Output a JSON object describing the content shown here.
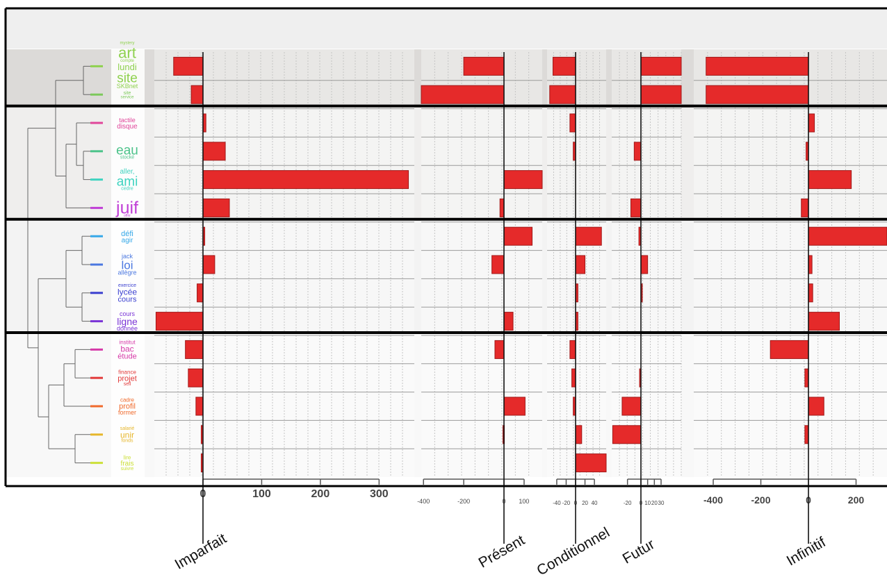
{
  "chart_data": {
    "type": "bar",
    "orientation": "horizontal",
    "groups": [
      {
        "rows": 2,
        "shade": "#dcdad8"
      },
      {
        "rows": 4,
        "shade": "#efeeed"
      },
      {
        "rows": 4,
        "shade": "#f3f3f3"
      },
      {
        "rows": 5,
        "shade": "#f8f8f8"
      }
    ],
    "clusters": [
      {
        "color": "#8fd14f",
        "words": [
          {
            "t": "mystery",
            "s": 6
          },
          {
            "t": "art",
            "s": 22
          },
          {
            "t": "compte",
            "s": 6
          },
          {
            "t": "lundi",
            "s": 13
          },
          {
            "t": "site",
            "s": 19
          },
          {
            "t": "SKBnet",
            "s": 9
          }
        ]
      },
      {
        "color": "#7cc95a",
        "words": [
          {
            "t": "site",
            "s": 7
          },
          {
            "t": "service",
            "s": 6
          }
        ]
      },
      {
        "color": "#e0459a",
        "words": [
          {
            "t": "tactile",
            "s": 9
          },
          {
            "t": "disque",
            "s": 10
          }
        ]
      },
      {
        "color": "#4cc38a",
        "words": [
          {
            "t": "eau",
            "s": 19
          },
          {
            "t": "stocké",
            "s": 7
          }
        ]
      },
      {
        "color": "#3fd3c0",
        "words": [
          {
            "t": "aller,",
            "s": 10
          },
          {
            "t": "ami",
            "s": 19
          },
          {
            "t": "cedre",
            "s": 7
          }
        ]
      },
      {
        "color": "#c03fd6",
        "words": [
          {
            "t": "juif",
            "s": 25
          },
          {
            "t": "offrir",
            "s": 5
          }
        ]
      },
      {
        "color": "#35a8e8",
        "words": [
          {
            "t": "défi",
            "s": 11
          },
          {
            "t": "agir",
            "s": 10
          }
        ]
      },
      {
        "color": "#4a77e0",
        "words": [
          {
            "t": "jack",
            "s": 9
          },
          {
            "t": "loi",
            "s": 17
          },
          {
            "t": "allègre",
            "s": 9
          }
        ]
      },
      {
        "color": "#3a3fd0",
        "words": [
          {
            "t": "exercice",
            "s": 7
          },
          {
            "t": "lycée",
            "s": 12
          },
          {
            "t": "cours",
            "s": 11
          }
        ]
      },
      {
        "color": "#7a34d6",
        "words": [
          {
            "t": "cours",
            "s": 9
          },
          {
            "t": "ligne",
            "s": 14
          },
          {
            "t": "donnée",
            "s": 9
          }
        ]
      },
      {
        "color": "#d63aa8",
        "words": [
          {
            "t": "institut",
            "s": 8
          },
          {
            "t": "bac",
            "s": 12
          },
          {
            "t": "étude",
            "s": 11
          }
        ]
      },
      {
        "color": "#e23b3b",
        "words": [
          {
            "t": "finance",
            "s": 8
          },
          {
            "t": "projet",
            "s": 11
          },
          {
            "t": "seil",
            "s": 7
          }
        ]
      },
      {
        "color": "#f06a2c",
        "words": [
          {
            "t": "cadre",
            "s": 8
          },
          {
            "t": "profil",
            "s": 11
          },
          {
            "t": "former",
            "s": 9
          }
        ]
      },
      {
        "color": "#e6b62a",
        "words": [
          {
            "t": "salarié",
            "s": 7
          },
          {
            "t": "unir",
            "s": 12
          },
          {
            "t": "fonds",
            "s": 7
          }
        ]
      },
      {
        "color": "#cce03a",
        "words": [
          {
            "t": "lire",
            "s": 8
          },
          {
            "t": "frais",
            "s": 10
          },
          {
            "t": "suivre",
            "s": 7
          }
        ]
      }
    ],
    "panels": [
      {
        "name": "Imparfait",
        "xlim": [
          -80,
          360
        ],
        "ticks": [
          0,
          100,
          200,
          300
        ],
        "values": [
          [
            -50
          ],
          [
            -20
          ],
          [
            5
          ],
          [
            38
          ],
          [
            350
          ],
          [
            45
          ],
          [
            3
          ],
          [
            20
          ],
          [
            -10
          ],
          [
            -80
          ],
          [
            -30
          ],
          [
            -25
          ],
          [
            -12
          ],
          [
            -3
          ],
          [
            -3
          ]
        ]
      },
      {
        "name": "Présent",
        "xlim": [
          -450,
          190
        ],
        "ticks": [
          -400,
          -200,
          0,
          100
        ],
        "values": [
          [
            -200
          ],
          [
            -450
          ],
          [
            0
          ],
          [
            0
          ],
          [
            190
          ],
          [
            -20
          ],
          [
            140
          ],
          [
            -60
          ],
          [
            0
          ],
          [
            45
          ],
          [
            -45
          ],
          [
            0
          ],
          [
            105
          ],
          [
            -5
          ],
          [
            0
          ]
        ]
      },
      {
        "name": "Conditionnel",
        "xlim": [
          -55,
          65
        ],
        "ticks": [
          -40,
          -20,
          0,
          20,
          40
        ],
        "values": [
          [
            -48
          ],
          [
            -55
          ],
          [
            -12
          ],
          [
            -5
          ],
          [
            0
          ],
          [
            0
          ],
          [
            55
          ],
          [
            20
          ],
          [
            5
          ],
          [
            5
          ],
          [
            -12
          ],
          [
            -8
          ],
          [
            -5
          ],
          [
            13
          ],
          [
            65
          ]
        ]
      },
      {
        "name": "Futur",
        "xlim": [
          -45,
          60
        ],
        "ticks": [
          -20,
          0,
          10,
          20,
          30
        ],
        "values": [
          [
            60
          ],
          [
            60
          ],
          [
            0
          ],
          [
            -10
          ],
          [
            0
          ],
          [
            -15
          ],
          [
            -3
          ],
          [
            10
          ],
          [
            2
          ],
          [
            0
          ],
          [
            0
          ],
          [
            -2
          ],
          [
            -28
          ],
          [
            -42
          ],
          [
            0
          ]
        ]
      },
      {
        "name": "Infinitif",
        "xlim": [
          -430,
          330
        ],
        "ticks": [
          -400,
          -200,
          0,
          200
        ],
        "values": [
          [
            -430
          ],
          [
            -430
          ],
          [
            25
          ],
          [
            -10
          ],
          [
            180
          ],
          [
            -30
          ],
          [
            340
          ],
          [
            15
          ],
          [
            18
          ],
          [
            130
          ],
          [
            -160
          ],
          [
            -15
          ],
          [
            65
          ],
          [
            -15
          ],
          [
            0
          ]
        ]
      }
    ]
  }
}
